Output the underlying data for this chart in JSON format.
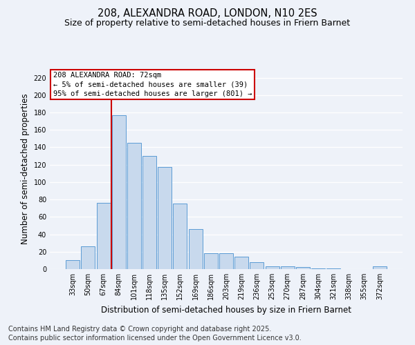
{
  "title_line1": "208, ALEXANDRA ROAD, LONDON, N10 2ES",
  "title_line2": "Size of property relative to semi-detached houses in Friern Barnet",
  "xlabel": "Distribution of semi-detached houses by size in Friern Barnet",
  "ylabel": "Number of semi-detached properties",
  "categories": [
    "33sqm",
    "50sqm",
    "67sqm",
    "84sqm",
    "101sqm",
    "118sqm",
    "135sqm",
    "152sqm",
    "169sqm",
    "186sqm",
    "203sqm",
    "219sqm",
    "236sqm",
    "253sqm",
    "270sqm",
    "287sqm",
    "304sqm",
    "321sqm",
    "338sqm",
    "355sqm",
    "372sqm"
  ],
  "values": [
    10,
    26,
    76,
    177,
    145,
    130,
    117,
    75,
    46,
    18,
    18,
    14,
    8,
    3,
    3,
    2,
    1,
    1,
    0,
    0,
    3
  ],
  "bar_color": "#c8d9ed",
  "bar_edge_color": "#5b9bd5",
  "red_line_index": 2,
  "annotation_text": "208 ALEXANDRA ROAD: 72sqm\n← 5% of semi-detached houses are smaller (39)\n95% of semi-detached houses are larger (801) →",
  "annotation_box_color": "#ffffff",
  "annotation_box_edge": "#cc0000",
  "red_line_color": "#cc0000",
  "ylim": [
    0,
    230
  ],
  "yticks": [
    0,
    20,
    40,
    60,
    80,
    100,
    120,
    140,
    160,
    180,
    200,
    220
  ],
  "footer_line1": "Contains HM Land Registry data © Crown copyright and database right 2025.",
  "footer_line2": "Contains public sector information licensed under the Open Government Licence v3.0.",
  "bg_color": "#eef2f9",
  "plot_bg_color": "#eef2f9",
  "grid_color": "#ffffff",
  "title_fontsize": 10.5,
  "subtitle_fontsize": 9,
  "axis_label_fontsize": 8.5,
  "tick_fontsize": 7,
  "footer_fontsize": 7,
  "annotation_fontsize": 7.5
}
